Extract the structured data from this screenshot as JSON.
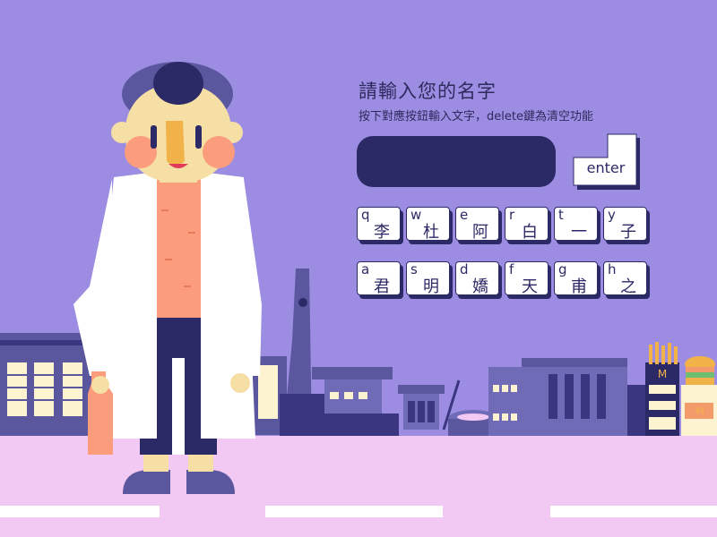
{
  "prompt": {
    "title": "請輸入您的名字",
    "subtitle": "按下對應按鈕輸入文字，delete鍵為清空功能"
  },
  "name_input": {
    "value": ""
  },
  "enter_key": {
    "label": "enter"
  },
  "keyboard": {
    "row1": [
      {
        "letter": "q",
        "char": "李"
      },
      {
        "letter": "w",
        "char": "杜"
      },
      {
        "letter": "e",
        "char": "阿"
      },
      {
        "letter": "r",
        "char": "白"
      },
      {
        "letter": "t",
        "char": "一"
      },
      {
        "letter": "y",
        "char": "子"
      }
    ],
    "row2": [
      {
        "letter": "a",
        "char": "君"
      },
      {
        "letter": "s",
        "char": "明"
      },
      {
        "letter": "d",
        "char": "嬌"
      },
      {
        "letter": "f",
        "char": "天"
      },
      {
        "letter": "g",
        "char": "甫"
      },
      {
        "letter": "h",
        "char": "之"
      }
    ]
  },
  "colors": {
    "sky": "#9d8de2",
    "ground": "#f2c9f2",
    "city": "#5b579f",
    "city_dark": "#3b3680",
    "navy": "#2b2a66",
    "skin": "#f5dfa4",
    "cheek": "#fb9c7c",
    "coat": "#ffffff"
  }
}
